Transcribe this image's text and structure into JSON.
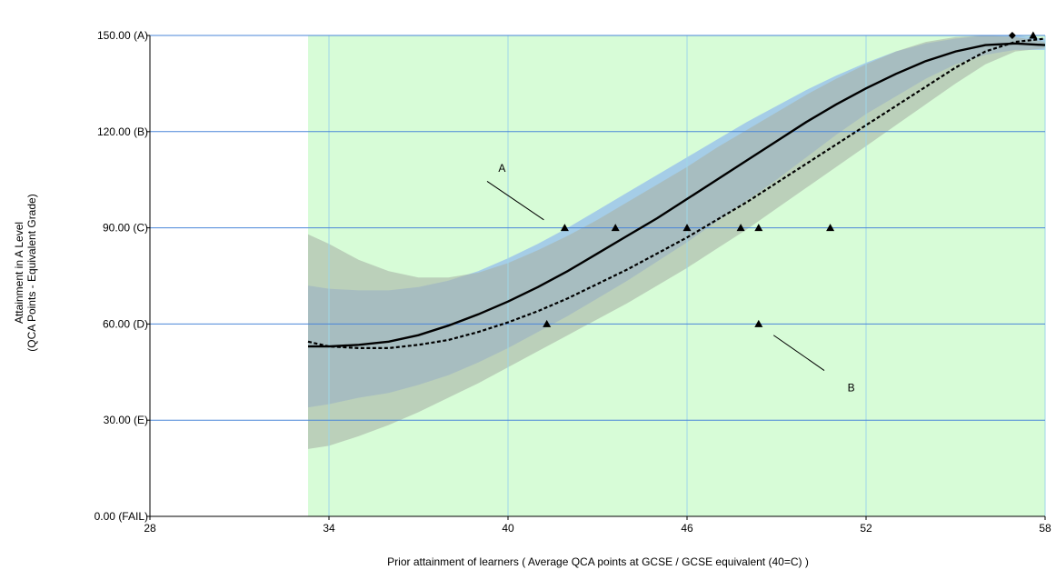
{
  "chart_data": {
    "type": "line",
    "title": "",
    "xlabel": "Prior attainment of learners ( Average QCA points at GCSE / GCSE equivalent (40=C) )",
    "ylabel_line1": "Attainment in A Level",
    "ylabel_line2": "(QCA Points - Equivalent Grade)",
    "xlim": [
      28,
      58
    ],
    "ylim": [
      0,
      150
    ],
    "x_ticks": [
      {
        "value": 28,
        "label": "28"
      },
      {
        "value": 34,
        "label": "34"
      },
      {
        "value": 40,
        "label": "40"
      },
      {
        "value": 46,
        "label": "46"
      },
      {
        "value": 52,
        "label": "52"
      },
      {
        "value": 58,
        "label": "58"
      }
    ],
    "y_ticks": [
      {
        "value": 0,
        "label": "0.00 (FAIL)"
      },
      {
        "value": 30,
        "label": "30.00 (E)"
      },
      {
        "value": 60,
        "label": "60.00 (D)"
      },
      {
        "value": 90,
        "label": "90.00 (C)"
      },
      {
        "value": 120,
        "label": "120.00 (B)"
      },
      {
        "value": 150,
        "label": "150.00 (A)"
      }
    ],
    "grid": true,
    "shaded_region": {
      "x_start": 33.3,
      "x_end": 58,
      "color": "#d7fcd7"
    },
    "colors": {
      "blue_band": "#9cc4ea",
      "grey_band": "#a9b2a6",
      "overlap_band": "#8ca3b8",
      "grid": "#9fd6e8",
      "y_grid": "#4a86d8",
      "line": "#000000"
    },
    "series": [
      {
        "style": "solid",
        "x": [
          33.3,
          34,
          35,
          36,
          37,
          38,
          39,
          40,
          41,
          42,
          43,
          44,
          45,
          46,
          47,
          48,
          49,
          50,
          51,
          52,
          53,
          54,
          55,
          56,
          57,
          58
        ],
        "y": [
          53,
          53,
          53.5,
          54.5,
          56.5,
          59.5,
          63,
          67,
          71.5,
          76.5,
          82,
          87.5,
          93,
          99,
          105,
          111,
          117,
          123,
          128.5,
          133.5,
          138,
          142,
          145,
          147,
          147.5,
          147
        ]
      },
      {
        "style": "dashed",
        "x": [
          33.3,
          34,
          35,
          36,
          37,
          38,
          39,
          40,
          41,
          42,
          43,
          44,
          45,
          46,
          47,
          48,
          49,
          50,
          51,
          52,
          53,
          54,
          55,
          56,
          57,
          58
        ],
        "y": [
          54.5,
          53,
          52.5,
          52.5,
          53.5,
          55,
          57.5,
          60.5,
          64,
          68,
          72.5,
          77,
          82,
          87,
          92.5,
          98,
          104,
          110,
          116,
          122,
          128,
          134,
          140,
          145,
          148,
          149
        ]
      }
    ],
    "bands": [
      {
        "color_key": "blue_band",
        "x": [
          33.3,
          34,
          35,
          36,
          37,
          38,
          39,
          40,
          41,
          42,
          43,
          44,
          45,
          46,
          47,
          48,
          49,
          50,
          51,
          52,
          53,
          54,
          55,
          56,
          57,
          58
        ],
        "upper": [
          72,
          71,
          70.5,
          70.5,
          71.5,
          73.5,
          76.5,
          80.5,
          85,
          90,
          95.5,
          101,
          106.5,
          112,
          117.5,
          123,
          128,
          133,
          137.5,
          141.5,
          145,
          147.5,
          149,
          150,
          150,
          149
        ],
        "lower": [
          34,
          35,
          37,
          38.5,
          41,
          44,
          48,
          52.5,
          57.5,
          62.5,
          68,
          73.5,
          79.5,
          85.5,
          92,
          98.5,
          105,
          112,
          119,
          125.5,
          131,
          136.5,
          141,
          144,
          145.5,
          145.5
        ]
      },
      {
        "color_key": "grey_band",
        "x": [
          33.3,
          34,
          35,
          36,
          37,
          38,
          39,
          40,
          41,
          42,
          43,
          44,
          45,
          46,
          47,
          48,
          49,
          50,
          51,
          52,
          53,
          54,
          55,
          56,
          57,
          58
        ],
        "upper": [
          88,
          85,
          80,
          76.5,
          74.5,
          74.5,
          76,
          79,
          83,
          87.5,
          92.5,
          98,
          103.5,
          109,
          115,
          120.5,
          126,
          131.5,
          136.5,
          141,
          145,
          148,
          149.5,
          150,
          149.5,
          148
        ],
        "lower": [
          21,
          22,
          25,
          28.5,
          32.5,
          37,
          41.5,
          46.5,
          51.5,
          56.5,
          61.5,
          66.5,
          72,
          77.5,
          83.5,
          89.5,
          96,
          102.5,
          109,
          115.5,
          122,
          128.5,
          135,
          141,
          145,
          146
        ]
      }
    ],
    "points": [
      {
        "x": 41.9,
        "y": 90,
        "marker": "triangle"
      },
      {
        "x": 43.6,
        "y": 90,
        "marker": "triangle"
      },
      {
        "x": 46.0,
        "y": 90,
        "marker": "triangle"
      },
      {
        "x": 47.8,
        "y": 90,
        "marker": "triangle"
      },
      {
        "x": 48.4,
        "y": 90,
        "marker": "triangle"
      },
      {
        "x": 50.8,
        "y": 90,
        "marker": "triangle"
      },
      {
        "x": 41.3,
        "y": 60,
        "marker": "triangle"
      },
      {
        "x": 48.4,
        "y": 60,
        "marker": "triangle"
      },
      {
        "x": 57.6,
        "y": 150,
        "marker": "triangle"
      },
      {
        "x": 56.9,
        "y": 150,
        "marker": "diamond"
      }
    ],
    "annotations": [
      {
        "label": "A",
        "label_x": 39.8,
        "label_y": 107.5,
        "line_from": [
          39.3,
          104.5
        ],
        "line_to": [
          41.2,
          92.5
        ]
      },
      {
        "label": "B",
        "label_x": 51.5,
        "label_y": 39,
        "line_from": [
          48.9,
          56.5
        ],
        "line_to": [
          50.6,
          45.5
        ]
      }
    ]
  }
}
